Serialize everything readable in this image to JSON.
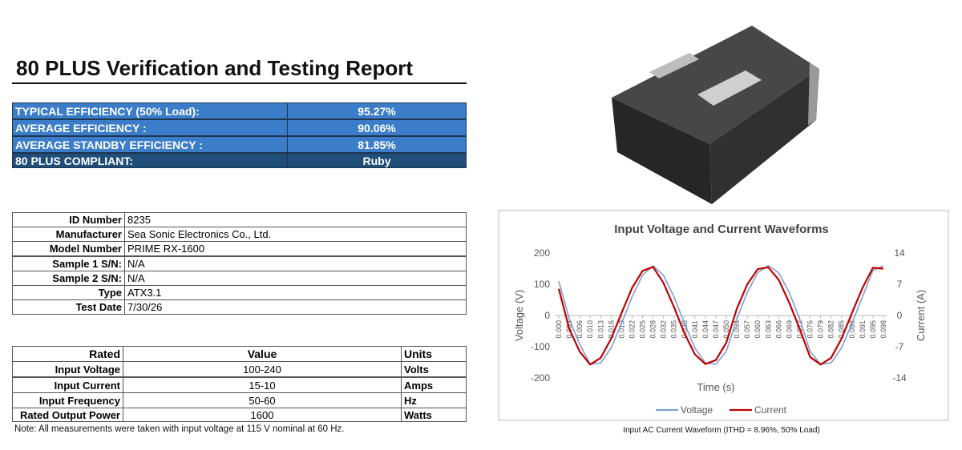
{
  "header": {
    "title": "80 PLUS Verification and Testing Report"
  },
  "efficiency": {
    "rows": [
      [
        "TYPICAL EFFICIENCY (50% Load):",
        "95.27%"
      ],
      [
        "AVERAGE EFFICIENCY :",
        "90.06%"
      ],
      [
        "AVERAGE STANDBY EFFICIENCY :",
        "81.85%"
      ],
      [
        "80 PLUS COMPLIANT:",
        "Ruby"
      ]
    ]
  },
  "info": {
    "rows": [
      [
        "ID Number",
        "8235"
      ],
      [
        "Manufacturer",
        "Sea Sonic Electronics Co., Ltd."
      ],
      [
        "Model Number",
        "PRIME RX-1600"
      ],
      [
        "Sample 1 S/N:",
        "N/A"
      ],
      [
        "Sample 2 S/N:",
        "N/A"
      ],
      [
        "Type",
        "ATX3.1"
      ],
      [
        "Test Date",
        "7/30/26"
      ]
    ]
  },
  "rated": {
    "header": [
      "Rated",
      "Value",
      "Units"
    ],
    "rows": [
      [
        "Input Voltage",
        "100-240",
        "Volts"
      ],
      [
        "Input Current",
        "15-10",
        "Amps"
      ],
      [
        "Input Frequency",
        "50-60",
        "Hz"
      ],
      [
        "Rated Output Power",
        "1600",
        "Watts"
      ]
    ]
  },
  "note": "Note: All measurements were taken with input voltage at 115 V nominal at 60 Hz.",
  "chart_caption": "Input AC Current Waveform (ITHD = 8.96%, 50% Load)",
  "chart_data": {
    "type": "line",
    "title": "Input Voltage and Current Waveforms",
    "x_label": "Time (s)",
    "y_label": "Voltage (V)",
    "y2_label": "Current (A)",
    "categories": [
      "0.000",
      "0.003",
      "0.006",
      "0.010",
      "0.013",
      "0.016",
      "0.019",
      "0.022",
      "0.025",
      "0.028",
      "0.032",
      "0.035",
      "0.038",
      "0.041",
      "0.044",
      "0.047",
      "0.050",
      "0.054",
      "0.057",
      "0.060",
      "0.063",
      "0.066",
      "0.069",
      "0.072",
      "0.076",
      "0.079",
      "0.082",
      "0.085",
      "0.088",
      "0.091",
      "0.095",
      "0.098"
    ],
    "series": [
      {
        "name": "Voltage",
        "color": "#7f9fcf",
        "values": [
          110,
          -11,
          -92,
          -156,
          -152,
          -104,
          -25,
          60,
          129,
          159,
          129,
          60,
          -25,
          -104,
          -152,
          -156,
          -115,
          -11,
          74,
          137,
          160,
          137,
          74,
          -11,
          -115,
          -156,
          -152,
          -104,
          -25,
          60,
          144,
          159
        ]
      },
      {
        "name": "Current",
        "color": "#c00000",
        "axis": "y2",
        "values": [
          6,
          -3.0,
          -8.1,
          -11.0,
          -9.5,
          -5.2,
          0.6,
          6.2,
          10.0,
          10.9,
          7.3,
          1.9,
          -4.0,
          -8.7,
          -10.9,
          -10.0,
          -6.1,
          1.5,
          7.0,
          10.4,
          10.8,
          8.0,
          2.9,
          -3.0,
          -9.3,
          -11.0,
          -9.5,
          -5.2,
          0.6,
          6.2,
          10.7,
          10.5
        ]
      }
    ],
    "ylim": [
      -200,
      200
    ],
    "yticks": [
      -200,
      -100,
      0,
      100,
      200
    ],
    "y2lim": [
      -14,
      14
    ],
    "y2ticks": [
      -14,
      -7,
      0,
      7,
      14
    ],
    "grid": false,
    "legend": "bottom"
  }
}
